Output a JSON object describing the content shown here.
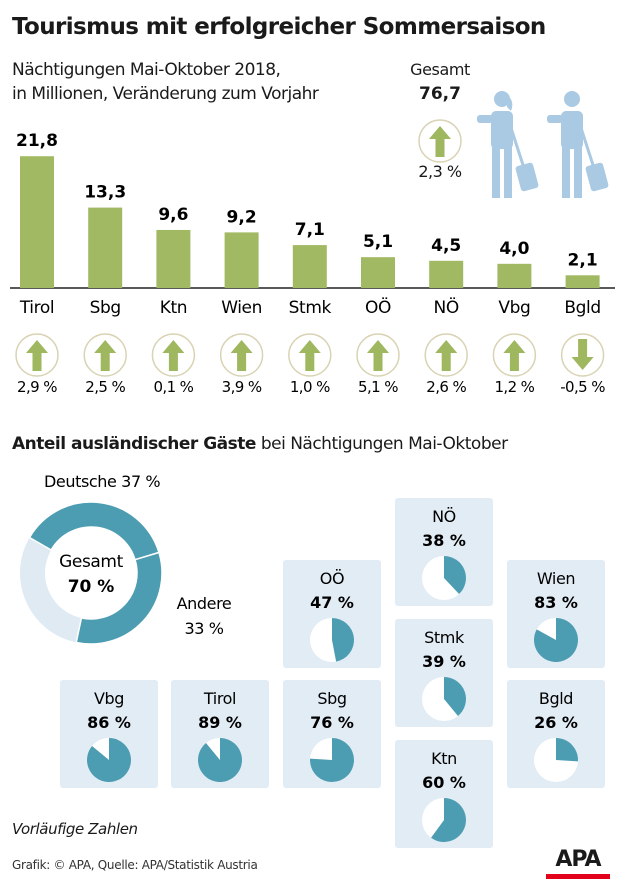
{
  "title": "Tourismus mit erfolgreicher Sommersaison",
  "subtitle_line1": "Nächtigungen Mai-Oktober 2018,",
  "subtitle_line2": "in Millionen, Veränderung zum Vorjahr",
  "total": {
    "label": "Gesamt",
    "value": "76,7",
    "change": "2,3 %",
    "direction": "up"
  },
  "colors": {
    "bar": "#a2b964",
    "arrow": "#9fb75e",
    "arrow_ring": "#d9d3b4",
    "teal": "#4d9db2",
    "light": "#dfeaf3",
    "tile": "#e2ecf5",
    "people": "#aac9e3",
    "apa_red": "#e2001a"
  },
  "icons": [
    "arrow-up-icon",
    "arrow-down-icon",
    "traveler-with-suitcase-icon",
    "apa-logo"
  ],
  "chart_data": [
    {
      "type": "bar",
      "title": "",
      "categories": [
        "Tirol",
        "Sbg",
        "Ktn",
        "Wien",
        "Stmk",
        "OÖ",
        "NÖ",
        "Vbg",
        "Bgld"
      ],
      "values": [
        21.8,
        13.3,
        9.6,
        9.2,
        7.1,
        5.1,
        4.5,
        4.0,
        2.1
      ],
      "value_labels": [
        "21,8",
        "13,3",
        "9,6",
        "9,2",
        "7,1",
        "5,1",
        "4,5",
        "4,0",
        "2,1"
      ],
      "change_labels": [
        "2,9 %",
        "2,5 %",
        "0,1 %",
        "3,9 %",
        "1,0 %",
        "5,1 %",
        "2,6 %",
        "1,2 %",
        "-0,5 %"
      ],
      "change_values": [
        2.9,
        2.5,
        0.1,
        3.9,
        1.0,
        5.1,
        2.6,
        1.2,
        -0.5
      ],
      "ylim": [
        0,
        22
      ],
      "grid": false
    },
    {
      "type": "pie",
      "title": "Anteil ausländischer Gäste bei Nächtigungen Mai-Oktober",
      "donut": {
        "center_label": "Gesamt",
        "center_value": "70 %",
        "total": 70,
        "segments": [
          {
            "name": "Deutsche",
            "label": "Deutsche 37 %",
            "value": 37
          },
          {
            "name": "Andere",
            "label_line1": "Andere",
            "label_line2": "33 %",
            "value": 33
          }
        ]
      },
      "regions": [
        {
          "name": "NÖ",
          "label": "38 %",
          "value": 38
        },
        {
          "name": "OÖ",
          "label": "47 %",
          "value": 47
        },
        {
          "name": "Wien",
          "label": "83 %",
          "value": 83
        },
        {
          "name": "Stmk",
          "label": "39 %",
          "value": 39
        },
        {
          "name": "Vbg",
          "label": "86 %",
          "value": 86
        },
        {
          "name": "Tirol",
          "label": "89 %",
          "value": 89
        },
        {
          "name": "Sbg",
          "label": "76 %",
          "value": 76
        },
        {
          "name": "Bgld",
          "label": "26 %",
          "value": 26
        },
        {
          "name": "Ktn",
          "label": "60 %",
          "value": 60
        }
      ]
    }
  ],
  "heading2_bold": "Anteil ausländischer Gäste",
  "heading2_rest": " bei Nächtigungen Mai-Oktober",
  "note": "Vorläufige Zahlen",
  "credit": "Grafik: © APA, Quelle: APA/Statistik Austria",
  "logo": "APA"
}
